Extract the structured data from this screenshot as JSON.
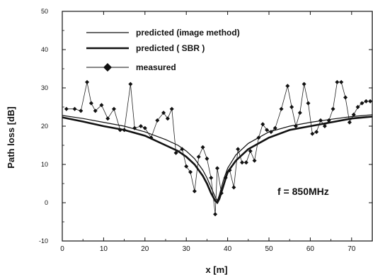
{
  "chart_data": {
    "type": "line",
    "xlabel": "x [m]",
    "ylabel": "Path loss [dB]",
    "xlim": [
      0,
      75
    ],
    "ylim": [
      -10,
      50
    ],
    "xticks": [
      0,
      10,
      20,
      30,
      40,
      50,
      60,
      70
    ],
    "yticks": [
      -10,
      0,
      10,
      20,
      30,
      40,
      50
    ],
    "grid": false,
    "legend_position": "top-left",
    "annotation": "f = 850MHz",
    "series": [
      {
        "name": "predicted (image method)",
        "style": "thin line",
        "x": [
          0,
          5,
          10,
          15,
          20,
          25,
          28,
          30,
          32,
          34,
          35,
          36,
          37,
          37.5,
          38,
          39,
          40,
          42,
          45,
          50,
          55,
          60,
          65,
          70,
          75
        ],
        "y": [
          22.8,
          22.0,
          21.0,
          20.0,
          18.5,
          16.5,
          15.0,
          13.5,
          11.5,
          8.5,
          6.5,
          4.0,
          1.5,
          0.5,
          2.0,
          6.0,
          9.0,
          12.5,
          15.5,
          18.5,
          20.0,
          21.0,
          21.8,
          22.5,
          23.0
        ]
      },
      {
        "name": "predicted ( SBR )",
        "style": "thick line",
        "x": [
          0,
          5,
          10,
          15,
          20,
          25,
          28,
          30,
          32,
          34,
          35,
          36,
          37,
          37.5,
          38,
          39,
          40,
          42,
          45,
          50,
          55,
          60,
          65,
          70,
          75
        ],
        "y": [
          22.3,
          21.2,
          20.0,
          19.0,
          17.5,
          15.0,
          13.5,
          12.0,
          10.0,
          7.0,
          5.0,
          2.5,
          0.5,
          0.0,
          1.0,
          4.5,
          8.0,
          11.0,
          14.0,
          17.0,
          19.0,
          20.0,
          21.0,
          22.0,
          22.5
        ]
      },
      {
        "name": "measured",
        "style": "line with diamond markers",
        "x": [
          1,
          3,
          4.5,
          6,
          7,
          8,
          9.5,
          11,
          12.5,
          14,
          15,
          16.5,
          17.5,
          19,
          20,
          21.5,
          23,
          24.5,
          25.5,
          26.5,
          27.5,
          29,
          30,
          31,
          32,
          33,
          34,
          35,
          36,
          37,
          37.5,
          38.5,
          39.5,
          40.5,
          41.5,
          42.5,
          43.5,
          44.5,
          45.5,
          46.5,
          47.5,
          48.5,
          49.5,
          50.5,
          51.5,
          53,
          54.5,
          55.5,
          56.5,
          57.5,
          58.5,
          59.5,
          60.5,
          61.5,
          62.5,
          63.5,
          64.5,
          65.5,
          66.5,
          67.5,
          68.5,
          69.5,
          70.5,
          71.5,
          72.5,
          73.5,
          74.5
        ],
        "y": [
          24.5,
          24.5,
          24,
          31.5,
          26,
          24,
          25.5,
          22,
          24.5,
          19,
          19,
          31,
          19.5,
          20,
          19.5,
          17,
          21.5,
          23.5,
          22,
          24.5,
          13,
          14,
          9.5,
          8,
          3,
          12,
          14.5,
          11.5,
          6.5,
          -3,
          9,
          2.5,
          6.5,
          8.5,
          4,
          14,
          10.5,
          10.5,
          13.5,
          11,
          17,
          20.5,
          19,
          18.5,
          19.5,
          24.5,
          30.5,
          25,
          20,
          23.5,
          31,
          26,
          18,
          18.5,
          21.5,
          20,
          21.5,
          24.5,
          31.5,
          31.5,
          27.5,
          21,
          23,
          25,
          26,
          26.5,
          26.5
        ]
      }
    ]
  }
}
